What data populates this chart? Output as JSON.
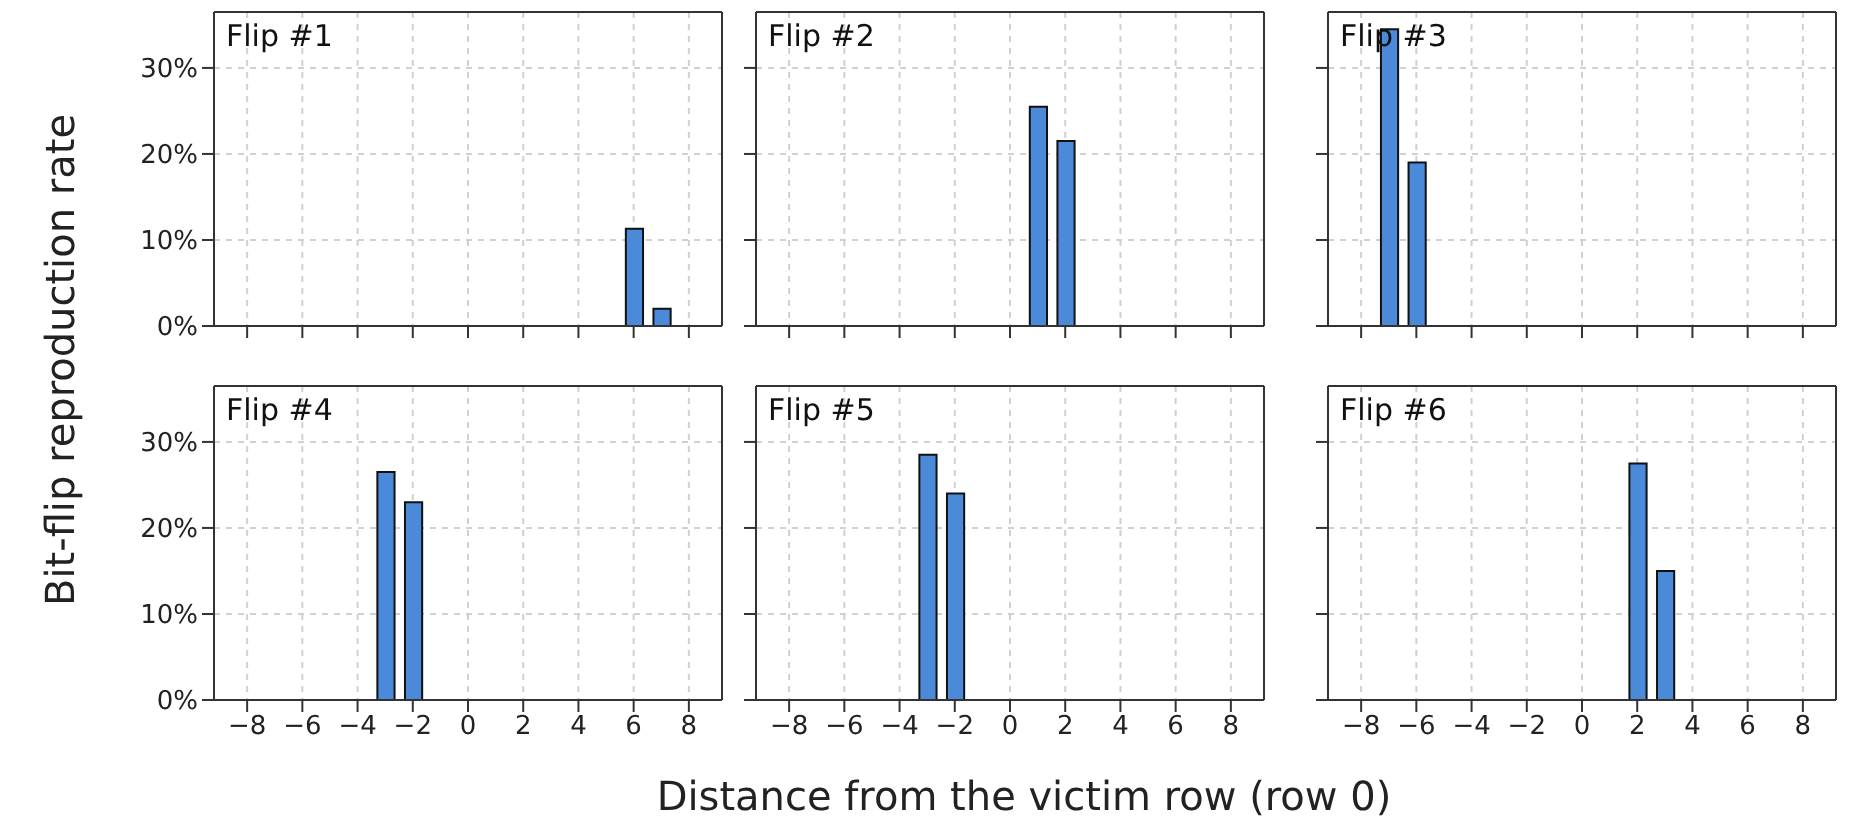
{
  "chart_data": [
    {
      "type": "bar",
      "title": "Flip #1",
      "ylabel": "Bit-flip reproduction rate",
      "x": [
        6,
        7
      ],
      "values": [
        11.3,
        2
      ],
      "color": "#4a8ad8",
      "xlim": [
        -9.2,
        9.2
      ],
      "xticks": [
        {
          "value": -8,
          "label": null
        },
        {
          "value": -6,
          "label": null
        },
        {
          "value": -4,
          "label": null
        },
        {
          "value": -2,
          "label": null
        },
        {
          "value": 0,
          "label": null
        },
        {
          "value": 2,
          "label": null
        },
        {
          "value": 4,
          "label": null
        },
        {
          "value": 6,
          "label": null
        },
        {
          "value": 8,
          "label": null
        }
      ],
      "ylim": [
        0,
        36.5
      ],
      "yticks": [
        {
          "value": 0,
          "label": "0%"
        },
        {
          "value": 10,
          "label": "10%"
        },
        {
          "value": 20,
          "label": "20%"
        },
        {
          "value": 30,
          "label": "30%"
        }
      ],
      "grid": true,
      "tick_labels": "y"
    },
    {
      "type": "bar",
      "title": "Flip #2",
      "x": [
        1,
        2
      ],
      "values": [
        25.5,
        21.5
      ],
      "color": "#4a8ad8",
      "xlim": [
        -9.2,
        9.2
      ],
      "xticks": [
        {
          "value": -8,
          "label": null
        },
        {
          "value": -6,
          "label": null
        },
        {
          "value": -4,
          "label": null
        },
        {
          "value": -2,
          "label": null
        },
        {
          "value": 0,
          "label": null
        },
        {
          "value": 2,
          "label": null
        },
        {
          "value": 4,
          "label": null
        },
        {
          "value": 6,
          "label": null
        },
        {
          "value": 8,
          "label": null
        }
      ],
      "ylim": [
        0,
        36.5
      ],
      "yticks": [
        {
          "value": 0,
          "label": null
        },
        {
          "value": 10,
          "label": null
        },
        {
          "value": 20,
          "label": null
        },
        {
          "value": 30,
          "label": null
        }
      ],
      "grid": true,
      "tick_labels": false
    },
    {
      "type": "bar",
      "title": "Flip #3",
      "x": [
        -7,
        -6
      ],
      "values": [
        34.5,
        19
      ],
      "color": "#4a8ad8",
      "xlim": [
        -9.2,
        9.2
      ],
      "xticks": [
        {
          "value": -8,
          "label": null
        },
        {
          "value": -6,
          "label": null
        },
        {
          "value": -4,
          "label": null
        },
        {
          "value": -2,
          "label": null
        },
        {
          "value": 0,
          "label": null
        },
        {
          "value": 2,
          "label": null
        },
        {
          "value": 4,
          "label": null
        },
        {
          "value": 6,
          "label": null
        },
        {
          "value": 8,
          "label": null
        }
      ],
      "ylim": [
        0,
        36.5
      ],
      "yticks": [
        {
          "value": 0,
          "label": null
        },
        {
          "value": 10,
          "label": null
        },
        {
          "value": 20,
          "label": null
        },
        {
          "value": 30,
          "label": null
        }
      ],
      "grid": true,
      "tick_labels": false
    },
    {
      "type": "bar",
      "title": "Flip #4",
      "x": [
        -3,
        -2
      ],
      "values": [
        26.5,
        23
      ],
      "color": "#4a8ad8",
      "xlim": [
        -9.2,
        9.2
      ],
      "xticks": [
        -8,
        -6,
        -4,
        -2,
        0,
        2,
        4,
        6,
        8
      ],
      "ylim": [
        0,
        36.5
      ],
      "yticks": [
        {
          "value": 0,
          "label": "0%"
        },
        {
          "value": 10,
          "label": "10%"
        },
        {
          "value": 20,
          "label": "20%"
        },
        {
          "value": 30,
          "label": "30%"
        }
      ],
      "grid": true
    },
    {
      "type": "bar",
      "title": "Flip #5",
      "xlabel": "Distance from the victim row (row 0)",
      "x": [
        -3,
        -2
      ],
      "values": [
        28.5,
        24
      ],
      "color": "#4a8ad8",
      "xlim": [
        -9.2,
        9.2
      ],
      "xticks": [
        -8,
        -6,
        -4,
        -2,
        0,
        2,
        4,
        6,
        8
      ],
      "ylim": [
        0,
        36.5
      ],
      "yticks": [
        {
          "value": 0,
          "label": null
        },
        {
          "value": 10,
          "label": null
        },
        {
          "value": 20,
          "label": null
        },
        {
          "value": 30,
          "label": null
        }
      ],
      "grid": true,
      "tick_labels": "x"
    },
    {
      "type": "bar",
      "title": "Flip #6",
      "x": [
        2,
        3
      ],
      "values": [
        27.5,
        15
      ],
      "color": "#4a8ad8",
      "xlim": [
        -9.2,
        9.2
      ],
      "xticks": [
        -8,
        -6,
        -4,
        -2,
        0,
        2,
        4,
        6,
        8
      ],
      "ylim": [
        0,
        36.5
      ],
      "yticks": [
        {
          "value": 0,
          "label": null
        },
        {
          "value": 10,
          "label": null
        },
        {
          "value": 20,
          "label": null
        },
        {
          "value": 30,
          "label": null
        }
      ],
      "grid": true,
      "tick_labels": "x"
    }
  ]
}
